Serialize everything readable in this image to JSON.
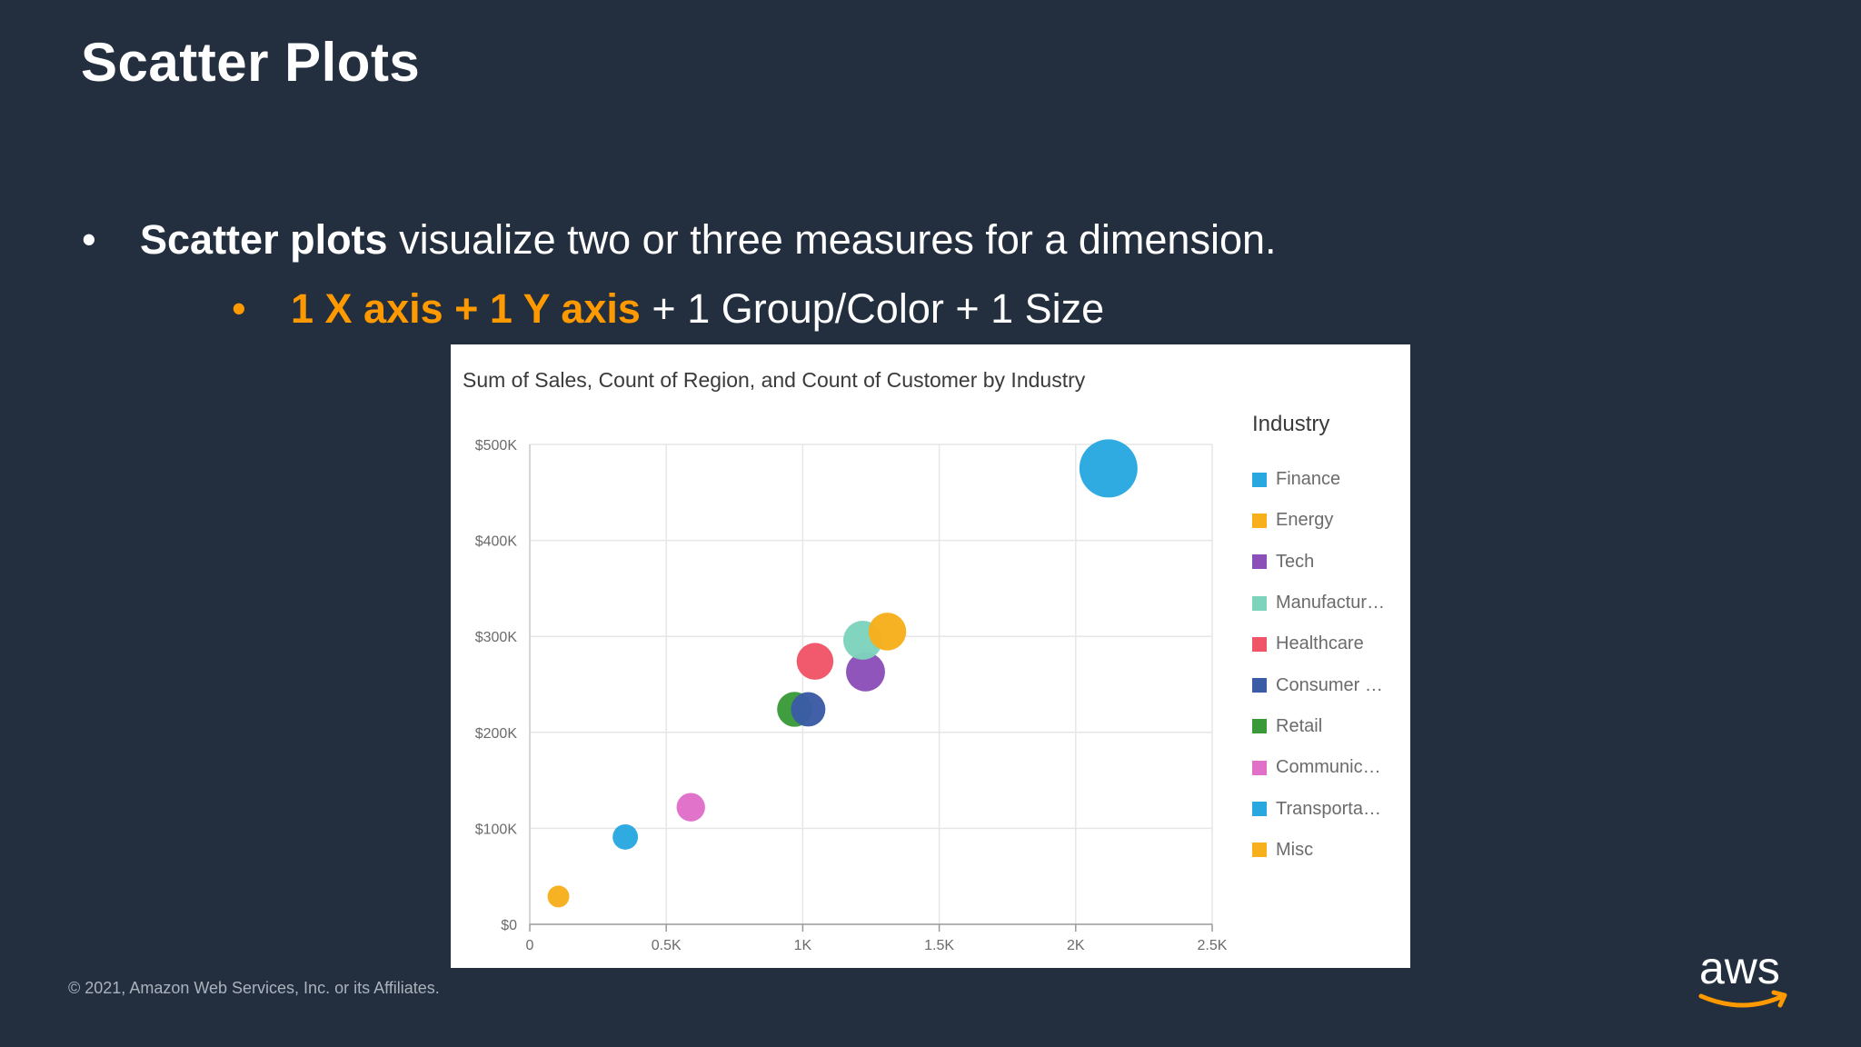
{
  "slide": {
    "title": "Scatter Plots",
    "bullet1": {
      "bold": "Scatter plots",
      "rest": " visualize two or three measures for a dimension."
    },
    "bullet2": {
      "highlight": "1 X axis + 1 Y axis",
      "rest": " + 1 Group/Color + 1 Size"
    },
    "footer": "© 2021, Amazon Web Services, Inc. or its Affiliates.",
    "logo_text": "aws"
  },
  "chart_data": {
    "type": "scatter",
    "title": "Sum of Sales, Count of Region, and Count of Customer by Industry",
    "xlim": [
      0,
      2500
    ],
    "ylim": [
      0,
      500000
    ],
    "x_ticks": [
      {
        "value": 0,
        "label": "0"
      },
      {
        "value": 500,
        "label": "0.5K"
      },
      {
        "value": 1000,
        "label": "1K"
      },
      {
        "value": 1500,
        "label": "1.5K"
      },
      {
        "value": 2000,
        "label": "2K"
      },
      {
        "value": 2500,
        "label": "2.5K"
      }
    ],
    "y_ticks": [
      {
        "value": 0,
        "label": "$0"
      },
      {
        "value": 100000,
        "label": "$100K"
      },
      {
        "value": 200000,
        "label": "$200K"
      },
      {
        "value": 300000,
        "label": "$300K"
      },
      {
        "value": 400000,
        "label": "$400K"
      },
      {
        "value": 500000,
        "label": "$500K"
      }
    ],
    "grid": true,
    "legend": {
      "title": "Industry",
      "position": "right"
    },
    "series": [
      {
        "name": "Finance",
        "label": "Finance",
        "color": "#29a8e0",
        "x": 2120,
        "y": 475000,
        "size": 100
      },
      {
        "name": "Energy",
        "label": "Energy",
        "color": "#f7b01c",
        "x": 1310,
        "y": 305000,
        "size": 42
      },
      {
        "name": "Tech",
        "label": "Tech",
        "color": "#8b4fb8",
        "x": 1230,
        "y": 263000,
        "size": 45
      },
      {
        "name": "Manufacturing",
        "label": "Manufactur…",
        "color": "#7dd3bc",
        "x": 1220,
        "y": 296000,
        "size": 45
      },
      {
        "name": "Healthcare",
        "label": "Healthcare",
        "color": "#ef5567",
        "x": 1045,
        "y": 274000,
        "size": 40
      },
      {
        "name": "Consumer",
        "label": "Consumer …",
        "color": "#3b5ba5",
        "x": 1020,
        "y": 224000,
        "size": 35
      },
      {
        "name": "Retail",
        "label": "Retail",
        "color": "#3a9a3a",
        "x": 970,
        "y": 224000,
        "size": 36
      },
      {
        "name": "Communications",
        "label": "Communic…",
        "color": "#e070c8",
        "x": 590,
        "y": 122000,
        "size": 24
      },
      {
        "name": "Transportation",
        "label": "Transporta…",
        "color": "#29a8e0",
        "x": 350,
        "y": 91000,
        "size": 19
      },
      {
        "name": "Misc",
        "label": "Misc",
        "color": "#f7b01c",
        "x": 105,
        "y": 29000,
        "size": 14
      }
    ]
  }
}
